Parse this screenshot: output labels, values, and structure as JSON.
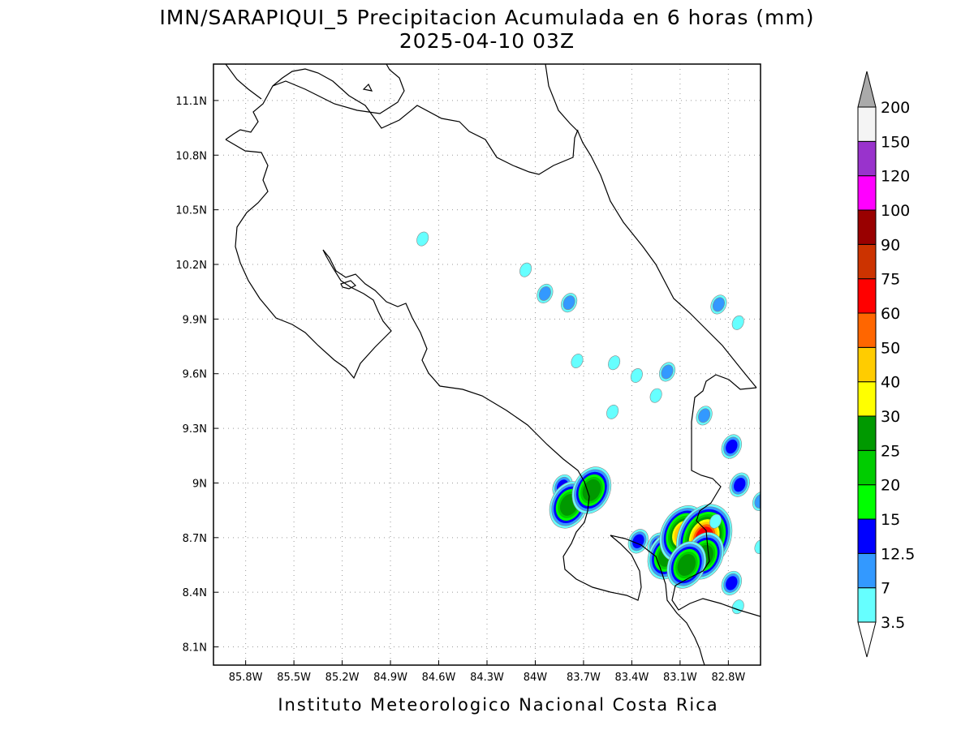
{
  "title": {
    "line1": "IMN/SARAPIQUI_5 Precipitacion Acumulada en 6 horas (mm)",
    "line2": "2025-04-10 03Z"
  },
  "footer": "Instituto Meteorologico Nacional Costa Rica",
  "map": {
    "lon_range": [
      -86.0,
      -82.6
    ],
    "lat_range": [
      8.0,
      11.3
    ],
    "lon_ticks": [
      {
        "value": -85.8,
        "label": "85.8W"
      },
      {
        "value": -85.5,
        "label": "85.5W"
      },
      {
        "value": -85.2,
        "label": "85.2W"
      },
      {
        "value": -84.9,
        "label": "84.9W"
      },
      {
        "value": -84.6,
        "label": "84.6W"
      },
      {
        "value": -84.3,
        "label": "84.3W"
      },
      {
        "value": -84.0,
        "label": "84W"
      },
      {
        "value": -83.7,
        "label": "83.7W"
      },
      {
        "value": -83.4,
        "label": "83.4W"
      },
      {
        "value": -83.1,
        "label": "83.1W"
      },
      {
        "value": -82.8,
        "label": "82.8W"
      }
    ],
    "lat_ticks": [
      {
        "value": 11.1,
        "label": "11.1N"
      },
      {
        "value": 10.8,
        "label": "10.8N"
      },
      {
        "value": 10.5,
        "label": "10.5N"
      },
      {
        "value": 10.2,
        "label": "10.2N"
      },
      {
        "value": 9.9,
        "label": "9.9N"
      },
      {
        "value": 9.6,
        "label": "9.6N"
      },
      {
        "value": 9.3,
        "label": "9.3N"
      },
      {
        "value": 9.0,
        "label": "9N"
      },
      {
        "value": 8.7,
        "label": "8.7N"
      },
      {
        "value": 8.4,
        "label": "8.4N"
      },
      {
        "value": 8.1,
        "label": "8.1N"
      }
    ],
    "grid": "dotted"
  },
  "colorbar": {
    "unit": "mm",
    "levels": [
      "3.5",
      "7",
      "12.5",
      "15",
      "20",
      "25",
      "30",
      "40",
      "50",
      "60",
      "75",
      "90",
      "100",
      "120",
      "150",
      "200"
    ],
    "colors": [
      "#66ffff",
      "#3399ff",
      "#0000ff",
      "#00ff00",
      "#00cc00",
      "#009900",
      "#ffff00",
      "#ffcc00",
      "#ff6600",
      "#ff0000",
      "#cc3300",
      "#990000",
      "#ff00ff",
      "#9933cc",
      "#f4f4f4"
    ],
    "over_color": "#aaaaaa",
    "under_color": "#ffffff"
  },
  "rain_cells": [
    {
      "lon": -84.7,
      "lat": 10.34,
      "max_mm": 3.5
    },
    {
      "lon": -84.06,
      "lat": 10.17,
      "max_mm": 3.5
    },
    {
      "lon": -83.94,
      "lat": 10.04,
      "max_mm": 7
    },
    {
      "lon": -83.79,
      "lat": 9.99,
      "max_mm": 7
    },
    {
      "lon": -83.74,
      "lat": 9.67,
      "max_mm": 3.5
    },
    {
      "lon": -83.51,
      "lat": 9.66,
      "max_mm": 3.5
    },
    {
      "lon": -83.37,
      "lat": 9.59,
      "max_mm": 3.5
    },
    {
      "lon": -83.18,
      "lat": 9.61,
      "max_mm": 7
    },
    {
      "lon": -83.25,
      "lat": 9.48,
      "max_mm": 3.5
    },
    {
      "lon": -83.52,
      "lat": 9.39,
      "max_mm": 3.5
    },
    {
      "lon": -82.95,
      "lat": 9.37,
      "max_mm": 7
    },
    {
      "lon": -82.86,
      "lat": 9.98,
      "max_mm": 7
    },
    {
      "lon": -82.74,
      "lat": 9.88,
      "max_mm": 3.5
    },
    {
      "lon": -82.78,
      "lat": 9.2,
      "max_mm": 12.5
    },
    {
      "lon": -82.73,
      "lat": 8.99,
      "max_mm": 12.5
    },
    {
      "lon": -82.6,
      "lat": 8.9,
      "max_mm": 7
    },
    {
      "lon": -83.83,
      "lat": 8.98,
      "max_mm": 12.5
    },
    {
      "lon": -83.79,
      "lat": 8.88,
      "max_mm": 25
    },
    {
      "lon": -83.65,
      "lat": 8.96,
      "max_mm": 25
    },
    {
      "lon": -83.36,
      "lat": 8.68,
      "max_mm": 12.5
    },
    {
      "lon": -83.24,
      "lat": 8.66,
      "max_mm": 12.5
    },
    {
      "lon": -83.18,
      "lat": 8.6,
      "max_mm": 25
    },
    {
      "lon": -83.08,
      "lat": 8.72,
      "max_mm": 40
    },
    {
      "lon": -82.95,
      "lat": 8.7,
      "max_mm": 60
    },
    {
      "lon": -82.95,
      "lat": 8.6,
      "max_mm": 25
    },
    {
      "lon": -83.06,
      "lat": 8.55,
      "max_mm": 25
    },
    {
      "lon": -82.88,
      "lat": 8.79,
      "max_mm": 3.5
    },
    {
      "lon": -82.78,
      "lat": 8.45,
      "max_mm": 12.5
    },
    {
      "lon": -82.6,
      "lat": 8.65,
      "max_mm": 3.5
    },
    {
      "lon": -82.74,
      "lat": 8.32,
      "max_mm": 3.5
    }
  ]
}
